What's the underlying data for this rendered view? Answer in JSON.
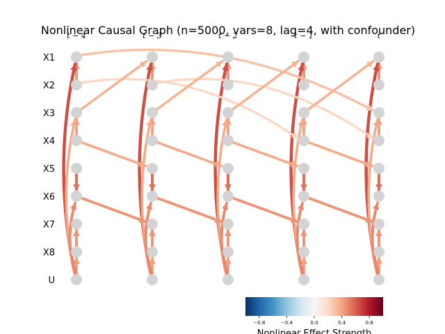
{
  "title": "Nonlinear Causal Graph (n=5000, vars=8, lag=4, with confounder)",
  "variables": [
    "X1",
    "X2",
    "X3",
    "X4",
    "X5",
    "X6",
    "X7",
    "X8",
    "U"
  ],
  "time_labels": [
    "t − 4",
    "t − 3",
    "t − 2",
    "t − 1",
    "t"
  ],
  "colorbar": {
    "label": "Nonlinear Effect Strength",
    "ticks": [
      "−0.8",
      "−0.4",
      "0.0",
      "0.4",
      "0.8"
    ],
    "tick_values": [
      -0.8,
      -0.4,
      0.0,
      0.4,
      0.8
    ],
    "range": [
      -1,
      1
    ],
    "colormap": [
      "#053061",
      "#2166ac",
      "#4393c3",
      "#92c5de",
      "#d1e5f0",
      "#f7f7f7",
      "#fddbc7",
      "#f4a582",
      "#d6604d",
      "#b2182b",
      "#67001f"
    ]
  },
  "edges_within_slice": [
    {
      "from": "X2",
      "to": "X1",
      "strength": 0.45
    },
    {
      "from": "X4",
      "to": "X3",
      "strength": 0.42
    },
    {
      "from": "X5",
      "to": "X6",
      "strength": 0.55
    },
    {
      "from": "X8",
      "to": "X7",
      "strength": 0.45
    },
    {
      "from": "U",
      "to": "X8",
      "strength": 0.42
    },
    {
      "from": "U",
      "to": "X1",
      "strength": 0.65
    },
    {
      "from": "U",
      "to": "X3",
      "strength": 0.38
    },
    {
      "from": "U",
      "to": "X6",
      "strength": 0.48
    }
  ],
  "edges_cross_lag": [
    {
      "from": "X1",
      "to": "X3",
      "lag": 4,
      "strength": 0.3
    },
    {
      "from": "X2",
      "to": "X4",
      "lag": 3,
      "strength": 0.22
    },
    {
      "from": "X3",
      "to": "X1",
      "lag": 1,
      "strength": 0.35
    },
    {
      "from": "X4",
      "to": "X5",
      "lag": 1,
      "strength": 0.38
    },
    {
      "from": "X6",
      "to": "X7",
      "lag": 1,
      "strength": 0.45
    }
  ]
}
